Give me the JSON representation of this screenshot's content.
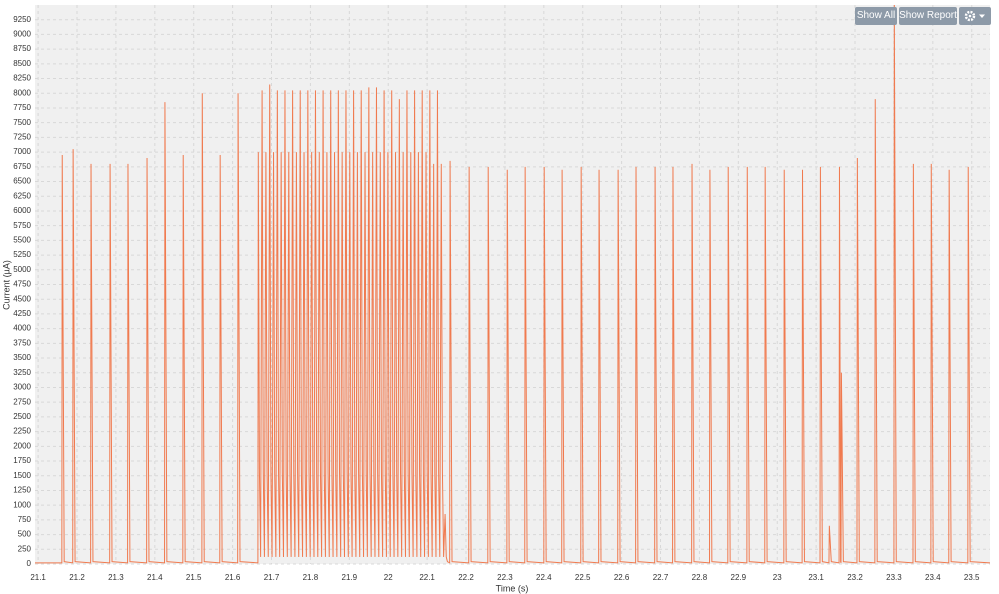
{
  "chart_data": {
    "type": "line",
    "x_label": "Time (s)",
    "y_label": "Current (µA)",
    "color": "#f07a4f",
    "grid": true,
    "xlim": [
      21.092,
      23.547
    ],
    "ylim": [
      0,
      9500
    ],
    "xticks": [
      21.1,
      21.2,
      21.3,
      21.4,
      21.5,
      21.6,
      21.7,
      21.8,
      21.9,
      22,
      22.1,
      22.2,
      22.3,
      22.4,
      22.5,
      22.6,
      22.7,
      22.8,
      22.9,
      23,
      23.1,
      23.2,
      23.3,
      23.4,
      23.5
    ],
    "yticks": [
      0,
      250,
      500,
      750,
      1000,
      1250,
      1500,
      1750,
      2000,
      2250,
      2500,
      2750,
      3000,
      3250,
      3500,
      3750,
      4000,
      4250,
      4500,
      4750,
      5000,
      5250,
      5500,
      5750,
      6000,
      6250,
      6500,
      6750,
      7000,
      7250,
      7500,
      7750,
      8000,
      8250,
      8500,
      8750,
      9000,
      9250
    ],
    "x": [
      21.092,
      21.161,
      21.162,
      21.167,
      21.189,
      21.19,
      21.195,
      21.235,
      21.236,
      21.241,
      21.284,
      21.285,
      21.29,
      21.33,
      21.331,
      21.336,
      21.379,
      21.38,
      21.385,
      21.425,
      21.426,
      21.431,
      21.472,
      21.473,
      21.478,
      21.521,
      21.522,
      21.527,
      21.567,
      21.568,
      21.573,
      21.613,
      21.614,
      21.619,
      21.665,
      21.666,
      21.669,
      21.672,
      21.6758,
      21.6788,
      21.6818,
      21.6856,
      21.6886,
      21.6916,
      21.6954,
      21.6984,
      21.7014,
      21.7052,
      21.7082,
      21.7112,
      21.715,
      21.718,
      21.721,
      21.7248,
      21.7278,
      21.7308,
      21.7346,
      21.7376,
      21.7406,
      21.7444,
      21.7474,
      21.7504,
      21.7542,
      21.7572,
      21.7602,
      21.764,
      21.767,
      21.77,
      21.7738,
      21.7768,
      21.7798,
      21.7836,
      21.7866,
      21.7896,
      21.7934,
      21.7964,
      21.7994,
      21.8032,
      21.8062,
      21.8092,
      21.813,
      21.816,
      21.819,
      21.8228,
      21.8258,
      21.8288,
      21.8326,
      21.8356,
      21.8386,
      21.8424,
      21.8454,
      21.8484,
      21.8522,
      21.8552,
      21.8582,
      21.862,
      21.865,
      21.868,
      21.8718,
      21.8748,
      21.8778,
      21.8816,
      21.8846,
      21.8876,
      21.8914,
      21.8944,
      21.8974,
      21.9012,
      21.9042,
      21.9072,
      21.911,
      21.914,
      21.917,
      21.9208,
      21.9238,
      21.9268,
      21.9306,
      21.9336,
      21.9366,
      21.9404,
      21.9434,
      21.9464,
      21.9502,
      21.9532,
      21.9562,
      21.96,
      21.963,
      21.966,
      21.9698,
      21.9728,
      21.9758,
      21.9796,
      21.9826,
      21.9856,
      21.9894,
      21.9924,
      21.9954,
      21.9992,
      22.0022,
      22.0052,
      22.009,
      22.012,
      22.015,
      22.0188,
      22.0218,
      22.0248,
      22.0286,
      22.0316,
      22.0346,
      22.0384,
      22.0414,
      22.0444,
      22.0482,
      22.0512,
      22.0542,
      22.058,
      22.061,
      22.064,
      22.0678,
      22.0708,
      22.0738,
      22.0776,
      22.0806,
      22.0836,
      22.0874,
      22.0904,
      22.0934,
      22.0972,
      22.1002,
      22.1032,
      22.107,
      22.11,
      22.113,
      22.1168,
      22.1198,
      22.1228,
      22.1266,
      22.1296,
      22.1326,
      22.1364,
      22.1394,
      22.1424,
      22.1462,
      22.1492,
      22.1522,
      22.158,
      22.159,
      22.164,
      22.207,
      22.208,
      22.213,
      22.256,
      22.257,
      22.262,
      22.305,
      22.306,
      22.311,
      22.351,
      22.352,
      22.357,
      22.4,
      22.401,
      22.406,
      22.446,
      22.447,
      22.452,
      22.495,
      22.496,
      22.501,
      22.541,
      22.542,
      22.547,
      22.59,
      22.591,
      22.596,
      22.636,
      22.637,
      22.642,
      22.685,
      22.686,
      22.691,
      22.731,
      22.732,
      22.737,
      22.78,
      22.781,
      22.786,
      22.826,
      22.827,
      22.832,
      22.873,
      22.874,
      22.879,
      22.922,
      22.923,
      22.928,
      22.968,
      22.969,
      22.974,
      23.017,
      23.018,
      23.023,
      23.064,
      23.065,
      23.07,
      23.11,
      23.111,
      23.116,
      23.133,
      23.134,
      23.139,
      23.159,
      23.16,
      23.163,
      23.164,
      23.165,
      23.17,
      23.205,
      23.206,
      23.211,
      23.251,
      23.252,
      23.257,
      23.3,
      23.301,
      23.306,
      23.349,
      23.35,
      23.355,
      23.395,
      23.396,
      23.401,
      23.441,
      23.442,
      23.447,
      23.49,
      23.491,
      23.496,
      23.547
    ],
    "values": [
      20,
      20,
      6950,
      40,
      20,
      7050,
      40,
      20,
      6800,
      40,
      20,
      6800,
      40,
      20,
      6800,
      40,
      20,
      6900,
      40,
      20,
      7850,
      40,
      20,
      6950,
      40,
      20,
      8000,
      40,
      20,
      6950,
      40,
      20,
      8000,
      40,
      20,
      7000,
      1550,
      120,
      8050,
      1550,
      120,
      7000,
      1550,
      120,
      8150,
      1550,
      120,
      7000,
      1550,
      120,
      8050,
      1550,
      120,
      7000,
      1550,
      120,
      8050,
      1550,
      120,
      7000,
      1550,
      120,
      8050,
      1550,
      120,
      7000,
      1550,
      120,
      8050,
      1550,
      120,
      7000,
      1550,
      120,
      8050,
      1550,
      120,
      7000,
      1550,
      120,
      8050,
      1550,
      120,
      7000,
      1550,
      120,
      8050,
      1550,
      120,
      7000,
      1550,
      120,
      8050,
      1550,
      120,
      7000,
      1550,
      120,
      8050,
      1550,
      120,
      7000,
      1550,
      120,
      8050,
      1550,
      120,
      7000,
      1550,
      120,
      8050,
      1550,
      120,
      7000,
      1550,
      120,
      8050,
      1550,
      120,
      7000,
      1550,
      120,
      8100,
      1550,
      120,
      7000,
      1550,
      120,
      8100,
      1550,
      120,
      7000,
      1550,
      120,
      8050,
      1550,
      120,
      7000,
      1550,
      120,
      8050,
      1550,
      120,
      7000,
      1550,
      120,
      7900,
      1550,
      120,
      7000,
      1550,
      120,
      8050,
      1550,
      120,
      7000,
      1550,
      120,
      8050,
      1550,
      120,
      7000,
      1550,
      120,
      8050,
      1550,
      120,
      7000,
      1550,
      120,
      8050,
      1550,
      120,
      6800,
      1550,
      120,
      8050,
      1550,
      120,
      6800,
      1550,
      120,
      850,
      120,
      40,
      20,
      6850,
      40,
      20,
      6750,
      40,
      20,
      6750,
      40,
      20,
      6700,
      40,
      20,
      6750,
      40,
      20,
      6750,
      40,
      20,
      6700,
      40,
      20,
      6750,
      40,
      20,
      6700,
      40,
      20,
      6700,
      40,
      20,
      6750,
      40,
      20,
      6750,
      40,
      20,
      6750,
      40,
      20,
      6800,
      40,
      20,
      6700,
      40,
      20,
      6750,
      40,
      20,
      6750,
      40,
      20,
      6750,
      40,
      20,
      6700,
      40,
      20,
      6700,
      40,
      20,
      6750,
      40,
      20,
      650,
      40,
      20,
      6750,
      40,
      20,
      3250,
      40,
      20,
      6900,
      40,
      20,
      7900,
      40,
      20,
      9500,
      40,
      20,
      6800,
      40,
      20,
      6800,
      40,
      20,
      6700,
      40,
      20,
      6750,
      40,
      20
    ]
  },
  "toolbar": {
    "buttons": [
      "Show All",
      "Show Report"
    ]
  }
}
